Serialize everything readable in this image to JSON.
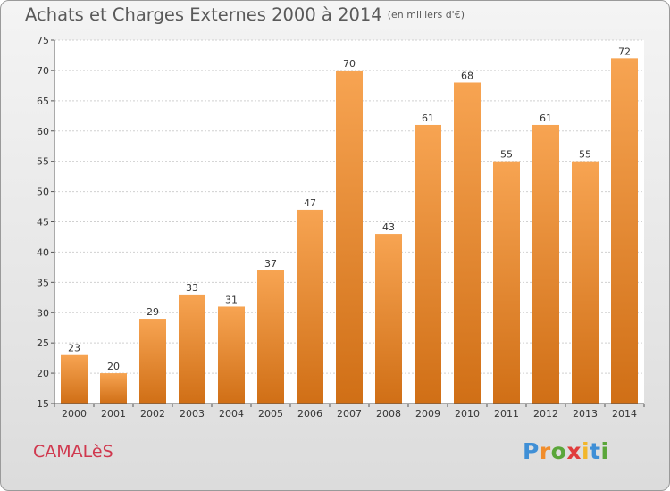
{
  "chart_data": {
    "type": "bar",
    "title": "Achats et Charges Externes 2000 à 2014",
    "subtitle": "(en milliers d'€)",
    "categories": [
      "2000",
      "2001",
      "2002",
      "2003",
      "2004",
      "2005",
      "2006",
      "2007",
      "2008",
      "2009",
      "2010",
      "2011",
      "2012",
      "2013",
      "2014"
    ],
    "values": [
      23,
      20,
      29,
      33,
      31,
      37,
      47,
      70,
      43,
      61,
      68,
      55,
      61,
      55,
      72
    ],
    "ylim": [
      15,
      75
    ],
    "yticks": [
      15,
      20,
      25,
      30,
      35,
      40,
      45,
      50,
      55,
      60,
      65,
      70,
      75
    ],
    "grid": true,
    "bar_color": "#f0943a"
  },
  "footer": {
    "town": "CAMALèS",
    "town_color": "#d0384e",
    "logo": {
      "letters": [
        {
          "ch": "P",
          "color": "#3f8fd6"
        },
        {
          "ch": "r",
          "color": "#f18d2b"
        },
        {
          "ch": "o",
          "color": "#5aa63a"
        },
        {
          "ch": "x",
          "color": "#e03c3c"
        },
        {
          "ch": "i",
          "color": "#f2b62b"
        },
        {
          "ch": "t",
          "color": "#3f8fd6"
        },
        {
          "ch": "i",
          "color": "#5aa63a"
        }
      ]
    }
  }
}
